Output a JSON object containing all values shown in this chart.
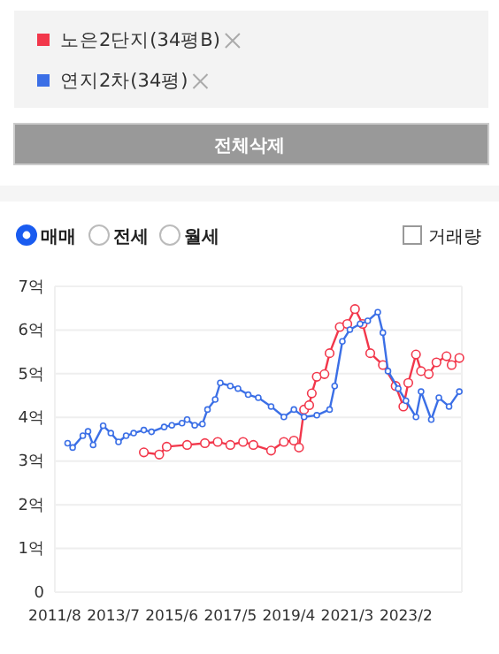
{
  "chart_data": {
    "type": "line",
    "series": [
      {
        "name": "노은2단지(34평B)",
        "color": "#f2374b",
        "x": [
          "2014-07",
          "2015-01",
          "2015-04",
          "2015-12",
          "2016-07",
          "2016-12",
          "2017-05",
          "2017-10",
          "2018-02",
          "2018-09",
          "2019-02",
          "2019-06",
          "2019-08",
          "2019-10",
          "2019-12",
          "2020-01",
          "2020-03",
          "2020-06",
          "2020-08",
          "2020-12",
          "2021-03",
          "2021-06",
          "2021-09",
          "2021-12",
          "2022-05",
          "2022-10",
          "2023-01",
          "2023-03",
          "2023-06",
          "2023-08",
          "2023-11",
          "2024-02",
          "2024-06",
          "2024-08",
          "2024-11"
        ],
        "values": [
          3.2,
          3.15,
          3.33,
          3.37,
          3.41,
          3.44,
          3.37,
          3.44,
          3.37,
          3.24,
          3.44,
          3.47,
          3.31,
          4.18,
          4.28,
          4.55,
          4.93,
          4.99,
          5.47,
          6.07,
          6.14,
          6.48,
          6.14,
          5.47,
          5.2,
          4.72,
          4.25,
          4.79,
          5.44,
          5.06,
          4.99,
          5.26,
          5.4,
          5.2,
          5.36
        ]
      },
      {
        "name": "연지2차(34평)",
        "color": "#3b6fe6",
        "x": [
          "2012-01",
          "2012-03",
          "2012-07",
          "2012-09",
          "2012-11",
          "2013-03",
          "2013-06",
          "2013-09",
          "2013-12",
          "2014-03",
          "2014-07",
          "2014-10",
          "2015-03",
          "2015-06",
          "2015-10",
          "2015-12",
          "2016-03",
          "2016-06",
          "2016-08",
          "2016-11",
          "2017-01",
          "2017-05",
          "2017-08",
          "2017-12",
          "2018-04",
          "2018-09",
          "2019-02",
          "2019-06",
          "2019-10",
          "2020-03",
          "2020-08",
          "2020-10",
          "2021-01",
          "2021-04",
          "2021-08",
          "2021-11",
          "2022-03",
          "2022-05",
          "2022-07",
          "2022-11",
          "2023-02",
          "2023-06",
          "2023-08",
          "2023-12",
          "2024-03",
          "2024-07",
          "2024-11"
        ],
        "values": [
          3.41,
          3.31,
          3.58,
          3.68,
          3.37,
          3.81,
          3.64,
          3.44,
          3.58,
          3.64,
          3.71,
          3.67,
          3.78,
          3.82,
          3.87,
          3.95,
          3.82,
          3.85,
          4.18,
          4.41,
          4.79,
          4.72,
          4.66,
          4.52,
          4.45,
          4.25,
          4.01,
          4.18,
          4.01,
          4.05,
          4.18,
          4.72,
          5.74,
          6.01,
          6.14,
          6.21,
          6.41,
          5.94,
          5.06,
          4.66,
          4.38,
          4.01,
          4.59,
          3.95,
          4.45,
          4.25,
          4.59
        ]
      }
    ],
    "xlim": [
      "2011-08",
      "2024-12"
    ],
    "xticks": [
      {
        "value": "2011-08",
        "label": "2011/8"
      },
      {
        "value": "2013-07",
        "label": "2013/7"
      },
      {
        "value": "2015-06",
        "label": "2015/6"
      },
      {
        "value": "2017-05",
        "label": "2017/5"
      },
      {
        "value": "2019-04",
        "label": "2019/4"
      },
      {
        "value": "2021-03",
        "label": "2021/3"
      },
      {
        "value": "2023-02",
        "label": "2023/2"
      }
    ],
    "ylim": [
      0,
      7
    ],
    "yticks": [
      0,
      {
        "value": 1,
        "label": "1억"
      },
      {
        "value": 2,
        "label": "2억"
      },
      {
        "value": 3,
        "label": "3억"
      },
      {
        "value": 4,
        "label": "4억"
      },
      {
        "value": 5,
        "label": "5억"
      },
      {
        "value": 6,
        "label": "6억"
      },
      {
        "value": 7,
        "label": "7억"
      }
    ],
    "grid": "y",
    "legend": "top",
    "marker": "circle",
    "line_style": "solid",
    "annotations": [
      "전체삭제",
      "매매",
      "전세",
      "월세",
      "거래량"
    ]
  }
}
